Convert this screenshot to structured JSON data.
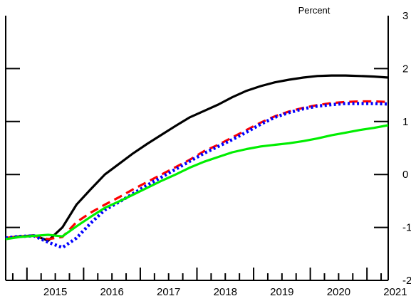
{
  "chart_data": {
    "type": "line",
    "title": "",
    "xlabel": "",
    "ylabel": "Percent",
    "xlim": [
      2014.625,
      2021.375
    ],
    "ylim": [
      -2,
      3
    ],
    "x_ticks": [
      "2015",
      "2016",
      "2017",
      "2018",
      "2019",
      "2020",
      "2021"
    ],
    "y_ticks": [
      "-2",
      "-1",
      "0",
      "1",
      "2",
      "3"
    ],
    "grid": false,
    "legend": "none",
    "series": [
      {
        "color": "#000000",
        "style": "solid",
        "points": [
          [
            2014.625,
            -1.2
          ],
          [
            2014.875,
            -1.17
          ],
          [
            2015.125,
            -1.15
          ],
          [
            2015.375,
            -1.25
          ],
          [
            2015.625,
            -1.0
          ],
          [
            2015.875,
            -0.57
          ],
          [
            2016.125,
            -0.28
          ],
          [
            2016.375,
            0.0
          ],
          [
            2016.625,
            0.2
          ],
          [
            2016.875,
            0.4
          ],
          [
            2017.125,
            0.58
          ],
          [
            2017.375,
            0.75
          ],
          [
            2017.625,
            0.92
          ],
          [
            2017.875,
            1.08
          ],
          [
            2018.125,
            1.2
          ],
          [
            2018.375,
            1.32
          ],
          [
            2018.625,
            1.46
          ],
          [
            2018.875,
            1.58
          ],
          [
            2019.125,
            1.67
          ],
          [
            2019.375,
            1.74
          ],
          [
            2019.625,
            1.79
          ],
          [
            2019.875,
            1.83
          ],
          [
            2020.125,
            1.86
          ],
          [
            2020.375,
            1.87
          ],
          [
            2020.625,
            1.87
          ],
          [
            2020.875,
            1.86
          ],
          [
            2021.125,
            1.85
          ],
          [
            2021.375,
            1.83
          ]
        ]
      },
      {
        "color": "#ff0000",
        "style": "dashed",
        "points": [
          [
            2014.625,
            -1.2
          ],
          [
            2014.875,
            -1.17
          ],
          [
            2015.125,
            -1.16
          ],
          [
            2015.375,
            -1.22
          ],
          [
            2015.625,
            -1.18
          ],
          [
            2015.875,
            -0.9
          ],
          [
            2016.125,
            -0.72
          ],
          [
            2016.375,
            -0.57
          ],
          [
            2016.625,
            -0.43
          ],
          [
            2016.875,
            -0.28
          ],
          [
            2017.125,
            -0.14
          ],
          [
            2017.375,
            0.0
          ],
          [
            2017.625,
            0.14
          ],
          [
            2017.875,
            0.28
          ],
          [
            2018.125,
            0.44
          ],
          [
            2018.375,
            0.56
          ],
          [
            2018.625,
            0.7
          ],
          [
            2018.875,
            0.84
          ],
          [
            2019.125,
            0.98
          ],
          [
            2019.375,
            1.1
          ],
          [
            2019.625,
            1.19
          ],
          [
            2019.875,
            1.26
          ],
          [
            2020.125,
            1.31
          ],
          [
            2020.375,
            1.35
          ],
          [
            2020.625,
            1.37
          ],
          [
            2020.875,
            1.38
          ],
          [
            2021.125,
            1.38
          ],
          [
            2021.375,
            1.37
          ]
        ]
      },
      {
        "color": "#0000ff",
        "style": "dotted",
        "points": [
          [
            2014.625,
            -1.2
          ],
          [
            2014.875,
            -1.17
          ],
          [
            2015.125,
            -1.16
          ],
          [
            2015.375,
            -1.28
          ],
          [
            2015.625,
            -1.38
          ],
          [
            2015.875,
            -1.2
          ],
          [
            2016.125,
            -0.92
          ],
          [
            2016.375,
            -0.67
          ],
          [
            2016.625,
            -0.52
          ],
          [
            2016.875,
            -0.36
          ],
          [
            2017.125,
            -0.2
          ],
          [
            2017.375,
            -0.05
          ],
          [
            2017.625,
            0.1
          ],
          [
            2017.875,
            0.25
          ],
          [
            2018.125,
            0.4
          ],
          [
            2018.375,
            0.53
          ],
          [
            2018.625,
            0.66
          ],
          [
            2018.875,
            0.8
          ],
          [
            2019.125,
            0.95
          ],
          [
            2019.375,
            1.08
          ],
          [
            2019.625,
            1.17
          ],
          [
            2019.875,
            1.24
          ],
          [
            2020.125,
            1.29
          ],
          [
            2020.375,
            1.32
          ],
          [
            2020.625,
            1.34
          ],
          [
            2020.875,
            1.34
          ],
          [
            2021.125,
            1.34
          ],
          [
            2021.375,
            1.33
          ]
        ]
      },
      {
        "color": "#00ee00",
        "style": "solid",
        "points": [
          [
            2014.625,
            -1.22
          ],
          [
            2014.875,
            -1.18
          ],
          [
            2015.125,
            -1.16
          ],
          [
            2015.375,
            -1.14
          ],
          [
            2015.625,
            -1.17
          ],
          [
            2015.875,
            -0.98
          ],
          [
            2016.125,
            -0.8
          ],
          [
            2016.375,
            -0.63
          ],
          [
            2016.625,
            -0.51
          ],
          [
            2016.875,
            -0.38
          ],
          [
            2017.125,
            -0.25
          ],
          [
            2017.375,
            -0.12
          ],
          [
            2017.625,
            0.0
          ],
          [
            2017.875,
            0.13
          ],
          [
            2018.125,
            0.24
          ],
          [
            2018.375,
            0.33
          ],
          [
            2018.625,
            0.42
          ],
          [
            2018.875,
            0.48
          ],
          [
            2019.125,
            0.53
          ],
          [
            2019.375,
            0.56
          ],
          [
            2019.625,
            0.59
          ],
          [
            2019.875,
            0.63
          ],
          [
            2020.125,
            0.68
          ],
          [
            2020.375,
            0.74
          ],
          [
            2020.625,
            0.79
          ],
          [
            2020.875,
            0.84
          ],
          [
            2021.125,
            0.88
          ],
          [
            2021.375,
            0.93
          ]
        ]
      }
    ]
  }
}
